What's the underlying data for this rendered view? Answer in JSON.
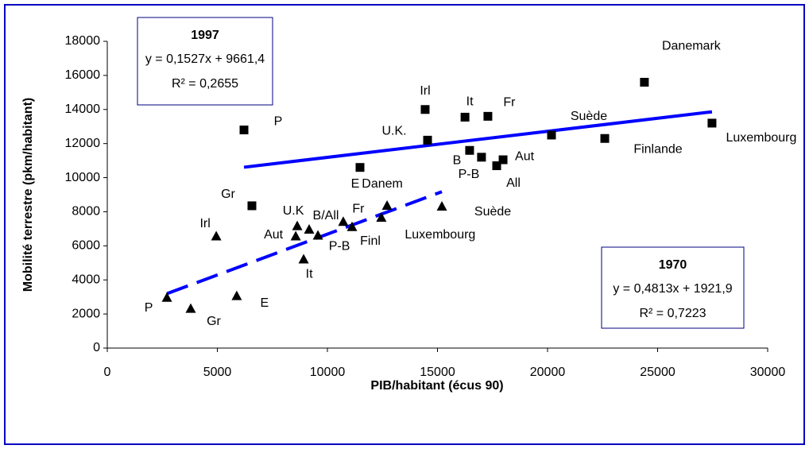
{
  "chart_data": {
    "type": "scatter",
    "x_label": "PIB/habitant (écus 90)",
    "y_label": "Mobilité terrestre (pkm/habitant)",
    "xlim": [
      0,
      30000
    ],
    "ylim": [
      0,
      18000
    ],
    "xticks": [
      0,
      5000,
      10000,
      15000,
      20000,
      25000,
      30000
    ],
    "yticks": [
      0,
      2000,
      4000,
      6000,
      8000,
      10000,
      12000,
      14000,
      16000,
      18000
    ],
    "grid": false,
    "series": [
      {
        "name": "1997",
        "equation": "y = 0,1527x + 9661,4",
        "r2": "R² = 0,2655",
        "marker": "square",
        "color": "#000000",
        "line_color": "#0000ff",
        "line_style": "solid",
        "labels": [
          "P",
          "Gr",
          "E",
          "Irl",
          "U.K.",
          "It",
          "Fr",
          "B",
          "P-B",
          "All",
          "Aut",
          "Suède",
          "Finlande",
          "Danemark",
          "Luxembourg"
        ],
        "x": [
          6210,
          6570,
          11480,
          14440,
          14550,
          16250,
          17290,
          16460,
          17000,
          17690,
          17980,
          20180,
          22600,
          24400,
          27470
        ],
        "values": [
          12800,
          8350,
          10600,
          14000,
          12200,
          13550,
          13600,
          11600,
          11200,
          10700,
          11050,
          12500,
          12300,
          15600,
          13200
        ]
      },
      {
        "name": "1970",
        "equation": "y = 0,4813x + 1921,9",
        "r2": "R² = 0,7223",
        "marker": "triangle",
        "color": "#000000",
        "line_color": "#0000ff",
        "line_style": "dashed",
        "labels": [
          "P",
          "Gr",
          "E",
          "Irl",
          "U.K",
          "Aut",
          "B/All",
          "P-B",
          "It",
          "Fr",
          "Finl",
          "Luxembourg",
          "Danem",
          "Suède"
        ],
        "x": [
          2710,
          3790,
          5880,
          4950,
          8630,
          8560,
          9170,
          9570,
          8920,
          10720,
          11120,
          12450,
          12710,
          15200
        ],
        "values": [
          2950,
          2300,
          3050,
          6550,
          7150,
          6550,
          6950,
          6600,
          5200,
          7400,
          7100,
          7650,
          8350,
          8300
        ]
      }
    ]
  }
}
